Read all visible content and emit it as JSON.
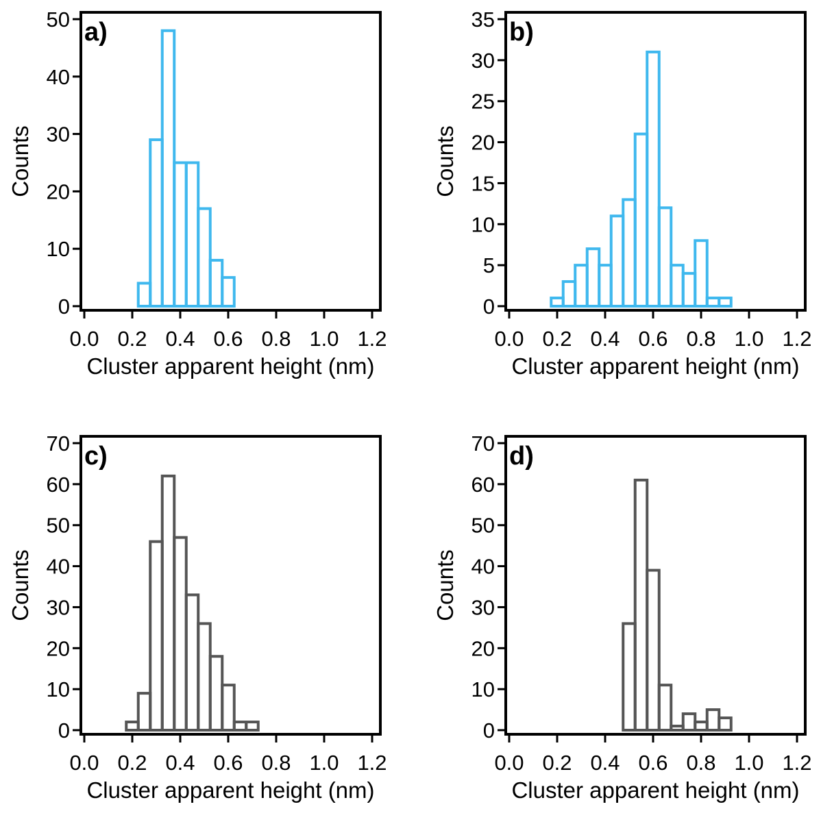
{
  "chart_data": [
    {
      "type": "bar",
      "panel_label": "a)",
      "xlabel": "Cluster apparent height (nm)",
      "ylabel": "Counts",
      "xlim": [
        0.0,
        1.2
      ],
      "ylim": [
        0,
        50
      ],
      "xticks": [
        "0.0",
        "0.2",
        "0.4",
        "0.6",
        "0.8",
        "1.0",
        "1.2"
      ],
      "yticks": [
        "0",
        "10",
        "20",
        "30",
        "40",
        "50"
      ],
      "bin_width": 0.05,
      "bins": [
        0.25,
        0.3,
        0.35,
        0.4,
        0.45,
        0.5,
        0.55,
        0.6
      ],
      "values": [
        4,
        29,
        48,
        25,
        25,
        17,
        8,
        5
      ],
      "bar_color": "#3fb8ee"
    },
    {
      "type": "bar",
      "panel_label": "b)",
      "xlabel": "Cluster apparent height (nm)",
      "ylabel": "Counts",
      "xlim": [
        0.0,
        1.2
      ],
      "ylim": [
        0,
        35
      ],
      "xticks": [
        "0.0",
        "0.2",
        "0.4",
        "0.6",
        "0.8",
        "1.0",
        "1.2"
      ],
      "yticks": [
        "0",
        "5",
        "10",
        "15",
        "20",
        "25",
        "30",
        "35"
      ],
      "bin_width": 0.05,
      "bins": [
        0.2,
        0.25,
        0.3,
        0.35,
        0.4,
        0.45,
        0.5,
        0.55,
        0.6,
        0.65,
        0.7,
        0.75,
        0.8,
        0.85,
        0.9
      ],
      "values": [
        1,
        3,
        5,
        7,
        5,
        11,
        13,
        21,
        31,
        12,
        5,
        4,
        8,
        1,
        1
      ],
      "bar_color": "#3fb8ee"
    },
    {
      "type": "bar",
      "panel_label": "c)",
      "xlabel": "Cluster apparent height (nm)",
      "ylabel": "Counts",
      "xlim": [
        0.0,
        1.2
      ],
      "ylim": [
        0,
        70
      ],
      "xticks": [
        "0.0",
        "0.2",
        "0.4",
        "0.6",
        "0.8",
        "1.0",
        "1.2"
      ],
      "yticks": [
        "0",
        "10",
        "20",
        "30",
        "40",
        "50",
        "60",
        "70"
      ],
      "bin_width": 0.05,
      "bins": [
        0.2,
        0.25,
        0.3,
        0.35,
        0.4,
        0.45,
        0.5,
        0.55,
        0.6,
        0.65,
        0.7
      ],
      "values": [
        2,
        9,
        46,
        62,
        47,
        33,
        26,
        18,
        11,
        2,
        2
      ],
      "bar_color": "#555555"
    },
    {
      "type": "bar",
      "panel_label": "d)",
      "xlabel": "Cluster apparent height (nm)",
      "ylabel": "Counts",
      "xlim": [
        0.0,
        1.2
      ],
      "ylim": [
        0,
        70
      ],
      "xticks": [
        "0.0",
        "0.2",
        "0.4",
        "0.6",
        "0.8",
        "1.0",
        "1.2"
      ],
      "yticks": [
        "0",
        "10",
        "20",
        "30",
        "40",
        "50",
        "60",
        "70"
      ],
      "bin_width": 0.05,
      "bins": [
        0.5,
        0.55,
        0.6,
        0.65,
        0.7,
        0.75,
        0.8,
        0.85,
        0.9
      ],
      "values": [
        26,
        61,
        39,
        11,
        1,
        4,
        2,
        5,
        3
      ],
      "bar_color": "#555555"
    }
  ]
}
